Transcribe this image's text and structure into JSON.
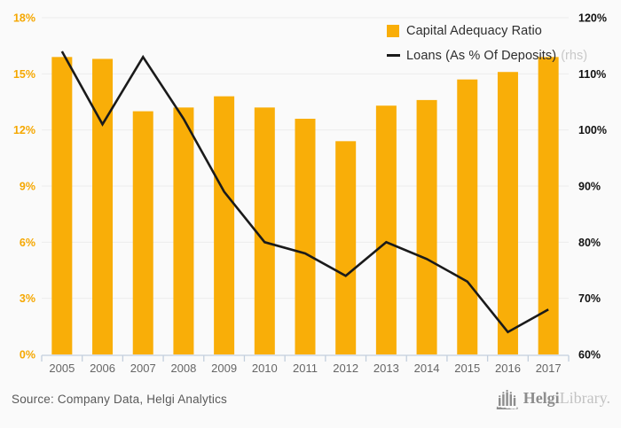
{
  "chart_data": {
    "type": "bar+line",
    "title": "",
    "categories": [
      "2005",
      "2006",
      "2007",
      "2008",
      "2009",
      "2010",
      "2011",
      "2012",
      "2013",
      "2014",
      "2015",
      "2016",
      "2017"
    ],
    "series": [
      {
        "name": "Capital Adequacy Ratio",
        "type": "bar",
        "axis": "left",
        "color": "#F9AE08",
        "values": [
          15.9,
          15.8,
          13.0,
          13.2,
          13.8,
          13.2,
          12.6,
          11.4,
          13.3,
          13.6,
          14.7,
          15.1,
          15.9
        ]
      },
      {
        "name": "Loans (As % Of Deposits)",
        "name_suffix": "(rhs)",
        "type": "line",
        "axis": "right",
        "color": "#1A1A1A",
        "values": [
          114,
          101,
          113,
          102,
          89,
          80,
          78,
          74,
          80,
          77,
          73,
          64,
          68
        ]
      }
    ],
    "left_axis": {
      "min": 0,
      "max": 18,
      "step": 3,
      "labels": [
        "18%",
        "15%",
        "12%",
        "9%",
        "6%",
        "3%",
        "0%"
      ],
      "color": "#F5A700"
    },
    "right_axis": {
      "min": 60,
      "max": 120,
      "step": 10,
      "labels": [
        "120%",
        "110%",
        "100%",
        "90%",
        "80%",
        "70%",
        "60%"
      ],
      "color": "#111111"
    },
    "grid": true,
    "legend_position": "top-right"
  },
  "legend": {
    "items": [
      {
        "label": "Capital Adequacy Ratio",
        "marker": "square",
        "color": "#F9AE08"
      },
      {
        "label": "Loans (As % Of Deposits)",
        "suffix": "(rhs)",
        "marker": "dash",
        "color": "#1A1A1A"
      }
    ]
  },
  "footer": {
    "source": "Source: Company Data, Helgi Analytics",
    "logo": {
      "brand_bold": "Helgi",
      "brand_light": "Library."
    }
  },
  "colors": {
    "background": "#FAFAFA",
    "gridline": "#ECECEC",
    "axis_line": "#C3CFDD",
    "year_label": "#666666",
    "source_text": "#595959"
  }
}
